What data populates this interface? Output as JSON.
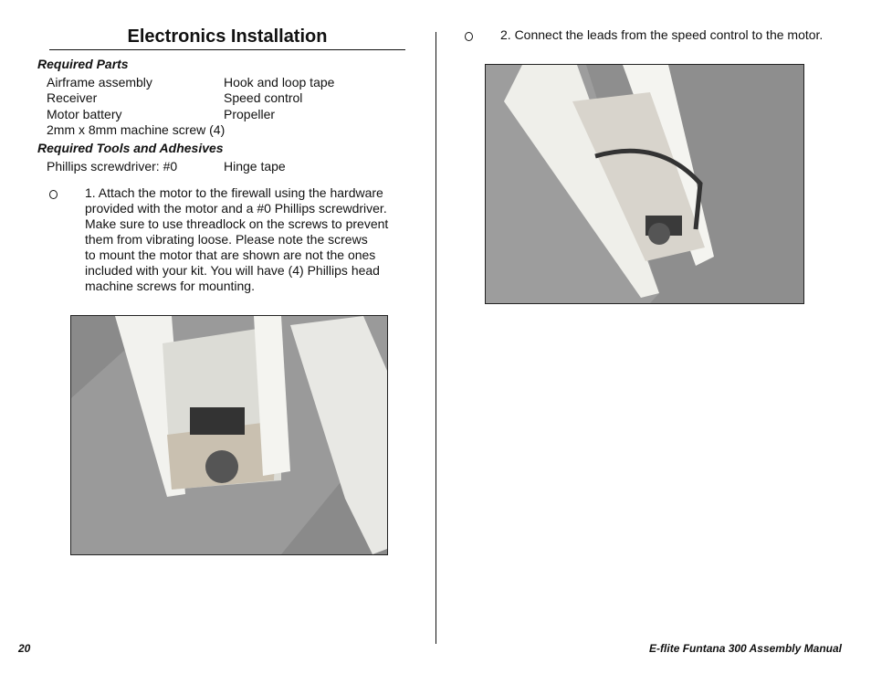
{
  "title": "Electronics Installation",
  "required_parts": {
    "heading": "Required Parts",
    "items": [
      [
        "Airframe assembly",
        "Hook and loop tape"
      ],
      [
        "Receiver",
        "Speed control"
      ],
      [
        "Motor battery",
        "Propeller"
      ],
      [
        "2mm x 8mm machine screw (4)"
      ]
    ]
  },
  "required_tools": {
    "heading": "Required Tools and Adhesives",
    "items": [
      [
        "Phillips screwdriver: #0",
        "Hinge tape"
      ]
    ]
  },
  "steps": [
    {
      "lines": [
        "1. Attach the motor to the firewall using the hardware",
        "provided with the motor and a #0 Phillips screwdriver.",
        "Make sure to use threadlock on the screws to prevent",
        "them from vibrating loose. Please note the screws",
        "to mount the motor that are shown are not the ones",
        "included with your kit. You will have (4) Phillips head",
        "machine screws for mounting."
      ]
    },
    {
      "lines": [
        "2. Connect the leads from the speed control to the motor."
      ]
    }
  ],
  "footer": {
    "page": "20",
    "manual": "E-flite Funtana 300 Assembly Manual"
  }
}
